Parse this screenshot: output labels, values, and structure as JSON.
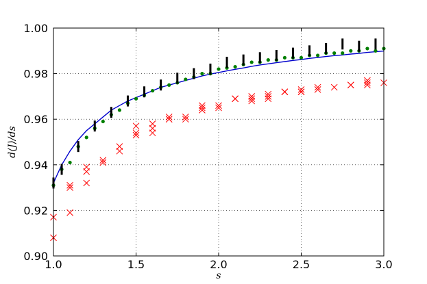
{
  "chart_data": {
    "type": "scatter",
    "title": "",
    "xlabel": "s",
    "ylabel": "d⟨J⟩/ds",
    "xlim": [
      1.0,
      3.0
    ],
    "ylim": [
      0.9,
      1.0
    ],
    "xticks": [
      1.0,
      1.5,
      2.0,
      2.5,
      3.0
    ],
    "xtick_labels": [
      "1.0",
      "1.5",
      "2.0",
      "2.5",
      "3.0"
    ],
    "yticks": [
      0.9,
      0.92,
      0.94,
      0.96,
      0.98,
      1.0
    ],
    "ytick_labels": [
      "0.90",
      "0.92",
      "0.94",
      "0.96",
      "0.98",
      "1.00"
    ],
    "grid": true,
    "grid_style": "dotted",
    "colors": {
      "curve": "#0000cc",
      "dots": "#007f00",
      "bars": "#000000",
      "crosses": "#ff0000"
    },
    "series": [
      {
        "kind": "line",
        "x": [
          1.0,
          1.025,
          1.05,
          1.075,
          1.1,
          1.15,
          1.2,
          1.25,
          1.3,
          1.35,
          1.4,
          1.45,
          1.5,
          1.55,
          1.6,
          1.65,
          1.7,
          1.75,
          1.8,
          1.85,
          1.9,
          1.95,
          2.0,
          2.05,
          2.1,
          2.15,
          2.2,
          2.25,
          2.3,
          2.35,
          2.4,
          2.45,
          2.5,
          2.55,
          2.6,
          2.65,
          2.7,
          2.75,
          2.8,
          2.85,
          2.9,
          2.95,
          3.0
        ],
        "y": [
          0.932,
          0.936,
          0.94,
          0.943,
          0.946,
          0.951,
          0.955,
          0.958,
          0.961,
          0.964,
          0.966,
          0.968,
          0.9695,
          0.971,
          0.9725,
          0.974,
          0.975,
          0.976,
          0.977,
          0.978,
          0.979,
          0.9798,
          0.9805,
          0.9812,
          0.9819,
          0.9825,
          0.9832,
          0.9838,
          0.9843,
          0.9848,
          0.9853,
          0.9858,
          0.9862,
          0.9867,
          0.9871,
          0.9875,
          0.9879,
          0.9882,
          0.9886,
          0.9889,
          0.9893,
          0.9896,
          0.9899
        ]
      },
      {
        "kind": "dots",
        "x": [
          1.0,
          1.05,
          1.1,
          1.15,
          1.2,
          1.25,
          1.3,
          1.35,
          1.4,
          1.45,
          1.5,
          1.55,
          1.6,
          1.65,
          1.7,
          1.75,
          1.8,
          1.85,
          1.9,
          1.95,
          2.0,
          2.05,
          2.1,
          2.15,
          2.2,
          2.25,
          2.3,
          2.35,
          2.4,
          2.45,
          2.5,
          2.55,
          2.6,
          2.65,
          2.7,
          2.75,
          2.8,
          2.85,
          2.9,
          2.95,
          3.0
        ],
        "y": [
          0.931,
          0.938,
          0.941,
          0.948,
          0.952,
          0.956,
          0.959,
          0.962,
          0.964,
          0.967,
          0.969,
          0.9705,
          0.9725,
          0.974,
          0.975,
          0.976,
          0.9775,
          0.9785,
          0.98,
          0.98,
          0.982,
          0.9825,
          0.983,
          0.984,
          0.985,
          0.985,
          0.986,
          0.986,
          0.987,
          0.987,
          0.987,
          0.988,
          0.988,
          0.989,
          0.989,
          0.989,
          0.99,
          0.99,
          0.991,
          0.99,
          0.991
        ]
      },
      {
        "kind": "bars",
        "x": [
          1.0,
          1.05,
          1.15,
          1.25,
          1.35,
          1.45,
          1.55,
          1.65,
          1.75,
          1.85,
          1.95,
          2.05,
          2.15,
          2.25,
          2.35,
          2.45,
          2.55,
          2.65,
          2.75,
          2.85,
          2.95
        ],
        "y": [
          0.932,
          0.938,
          0.948,
          0.957,
          0.963,
          0.968,
          0.972,
          0.975,
          0.978,
          0.98,
          0.982,
          0.985,
          0.986,
          0.987,
          0.988,
          0.989,
          0.99,
          0.991,
          0.993,
          0.992,
          0.993
        ]
      },
      {
        "kind": "crosses",
        "x": [
          1.0,
          1.0,
          1.1,
          1.1,
          1.1,
          1.2,
          1.2,
          1.2,
          1.3,
          1.3,
          1.4,
          1.4,
          1.5,
          1.5,
          1.5,
          1.6,
          1.6,
          1.6,
          1.7,
          1.7,
          1.7,
          1.8,
          1.8,
          1.9,
          1.9,
          1.9,
          2.0,
          2.0,
          2.1,
          2.1,
          2.2,
          2.2,
          2.2,
          2.3,
          2.3,
          2.3,
          2.4,
          2.4,
          2.5,
          2.5,
          2.5,
          2.6,
          2.6,
          2.7,
          2.8,
          2.8,
          2.9,
          2.9,
          2.9,
          3.0
        ],
        "y": [
          0.917,
          0.908,
          0.931,
          0.93,
          0.919,
          0.939,
          0.937,
          0.932,
          0.942,
          0.941,
          0.948,
          0.946,
          0.957,
          0.954,
          0.953,
          0.958,
          0.956,
          0.954,
          0.961,
          0.96,
          0.96,
          0.961,
          0.96,
          0.966,
          0.965,
          0.964,
          0.966,
          0.965,
          0.969,
          0.969,
          0.97,
          0.969,
          0.968,
          0.971,
          0.97,
          0.969,
          0.972,
          0.972,
          0.973,
          0.972,
          0.972,
          0.974,
          0.973,
          0.974,
          0.975,
          0.975,
          0.977,
          0.976,
          0.975,
          0.976
        ]
      }
    ]
  }
}
